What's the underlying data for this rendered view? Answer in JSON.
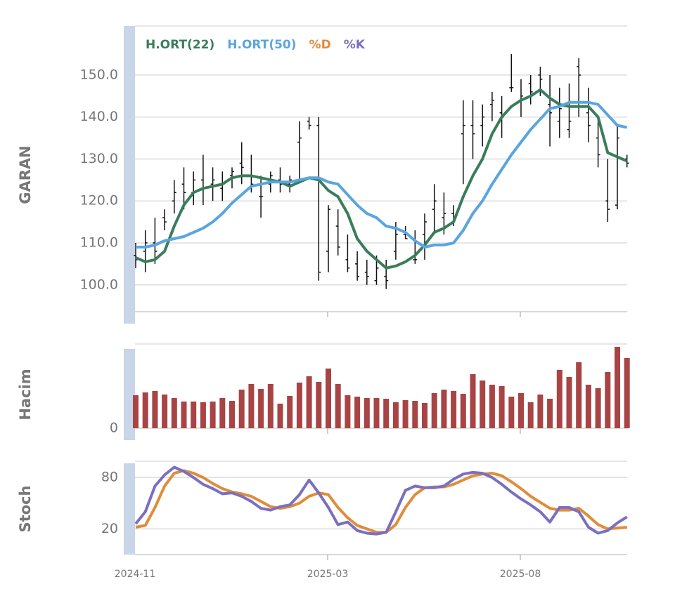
{
  "chart_data": [
    {
      "type": "ohlc",
      "ylabel": "GARAN",
      "color": "#111111",
      "open": [
        107,
        108,
        110,
        116,
        120,
        124,
        122,
        125,
        124,
        123,
        126,
        129,
        126,
        121,
        124,
        125,
        124,
        134,
        139,
        138,
        108,
        114,
        106,
        105,
        103,
        101,
        102,
        108,
        112,
        106,
        112,
        118,
        116,
        117,
        136,
        138,
        138,
        143,
        141,
        147,
        144,
        148,
        150,
        143,
        139,
        137,
        152,
        141,
        135,
        120,
        119,
        130
      ],
      "high": [
        110,
        113,
        116,
        118,
        125,
        128,
        127,
        131,
        128,
        127,
        128,
        134,
        131,
        126,
        127,
        128,
        126,
        139,
        140,
        140,
        119,
        118,
        112,
        108,
        106,
        107,
        106,
        115,
        114,
        113,
        117,
        124,
        122,
        119,
        144,
        144,
        143,
        146,
        145,
        155,
        149,
        150,
        152,
        150,
        147,
        148,
        154,
        147,
        140,
        130,
        138,
        131
      ],
      "low": [
        104,
        103,
        105,
        113,
        117,
        118,
        119,
        119,
        120,
        120,
        123,
        124,
        122,
        116,
        122,
        122,
        122,
        125,
        137,
        101,
        103,
        107,
        103,
        101,
        100,
        100,
        99,
        106,
        111,
        105,
        106,
        112,
        112,
        114,
        124,
        130,
        133,
        139,
        135,
        146,
        140,
        143,
        145,
        133,
        135,
        135,
        140,
        134,
        128,
        115,
        118,
        128
      ],
      "close": [
        106,
        110,
        108,
        115,
        122,
        122,
        125,
        123,
        125,
        124,
        127,
        128,
        124,
        121,
        126,
        124,
        125,
        135,
        138,
        103,
        118,
        109,
        104,
        102,
        102,
        104,
        101,
        112,
        111,
        106,
        115,
        120,
        117,
        116,
        138,
        136,
        140,
        144,
        140,
        147,
        145,
        146,
        149,
        141,
        142,
        139,
        150,
        138,
        131,
        118,
        135,
        129
      ],
      "series": [
        {
          "name": "H.ORT(22)",
          "color": "#3a7d5c",
          "values": [
            106.5,
            105.5,
            106,
            108,
            114,
            119,
            122,
            123,
            123.5,
            124,
            125.5,
            126,
            126,
            125.5,
            125,
            124.5,
            123.5,
            124.5,
            125.5,
            125,
            122.5,
            121,
            117,
            111,
            108,
            106,
            104,
            104.5,
            105.5,
            107,
            109.5,
            112.5,
            113.5,
            115,
            121,
            126,
            130,
            136,
            140,
            142.5,
            144,
            145,
            146.5,
            144.5,
            143,
            142.5,
            142.5,
            142.5,
            140,
            131.5,
            130.5,
            129.5
          ]
        },
        {
          "name": "H.ORT(50)",
          "color": "#5aa5e0",
          "values": [
            109,
            109,
            109.5,
            110.5,
            111,
            111.5,
            112.5,
            113.5,
            115,
            117,
            119.5,
            121.5,
            123.5,
            124,
            124.5,
            124.5,
            124.5,
            125,
            125.5,
            125.5,
            124.5,
            124,
            121.5,
            119,
            117,
            116,
            114,
            113.5,
            112.5,
            110.5,
            109,
            109.5,
            109.5,
            110,
            113,
            117,
            120,
            124,
            127.5,
            131,
            134,
            137,
            139.5,
            142,
            142.5,
            143.5,
            143.5,
            143.5,
            143,
            140.5,
            138,
            137.5
          ]
        }
      ],
      "ylim": [
        93.6,
        161.7
      ],
      "yticks": [
        {
          "value": 100,
          "label": "100.0"
        },
        {
          "value": 110,
          "label": "110.0"
        },
        {
          "value": 120,
          "label": "120.0"
        },
        {
          "value": 130,
          "label": "130.0"
        },
        {
          "value": 140,
          "label": "140.0"
        },
        {
          "value": 150,
          "label": "150.0"
        }
      ],
      "grid": true
    },
    {
      "type": "bar",
      "ylabel": "Hacim",
      "color": "#a84444",
      "values": [
        47,
        51,
        53,
        48,
        43,
        38,
        38,
        37,
        38,
        43,
        39,
        55,
        63,
        56,
        63,
        35,
        46,
        65,
        74,
        66,
        85,
        63,
        47,
        45,
        43,
        43,
        42,
        37,
        40,
        39,
        36,
        50,
        55,
        53,
        49,
        77,
        68,
        62,
        60,
        45,
        50,
        37,
        48,
        42,
        83,
        73,
        94,
        62,
        57,
        80,
        116,
        100
      ],
      "ylim": [
        0,
        120
      ],
      "yticks": [
        0
      ],
      "grid": true
    },
    {
      "type": "line",
      "ylabel": "Stoch",
      "categories": [
        "2024-11",
        null,
        null,
        null,
        null,
        null,
        null,
        null,
        null,
        null,
        null,
        null,
        null,
        null,
        null,
        null,
        null,
        null,
        null,
        null,
        "2025-03",
        null,
        null,
        null,
        null,
        null,
        null,
        null,
        null,
        null,
        null,
        null,
        null,
        null,
        null,
        null,
        null,
        null,
        null,
        null,
        "2025-08",
        null,
        null,
        null,
        null,
        null,
        null,
        null,
        null,
        null,
        null,
        null
      ],
      "series": [
        {
          "name": "%D",
          "color": "#e08c3a",
          "values": [
            22,
            24,
            45,
            70,
            85,
            88,
            85,
            80,
            73,
            67,
            63,
            61,
            58,
            52,
            46,
            44,
            46,
            50,
            58,
            62,
            60,
            45,
            33,
            24,
            20,
            16,
            16,
            25,
            45,
            60,
            68,
            69,
            69,
            72,
            77,
            82,
            84,
            85,
            82,
            75,
            67,
            58,
            51,
            44,
            42,
            42,
            44,
            35,
            25,
            20,
            21,
            22
          ]
        },
        {
          "name": "%K",
          "color": "#7b6fc0",
          "values": [
            26,
            40,
            70,
            83,
            92,
            87,
            80,
            72,
            67,
            61,
            62,
            58,
            52,
            44,
            42,
            46,
            48,
            60,
            77,
            62,
            45,
            25,
            28,
            18,
            15,
            14,
            16,
            40,
            65,
            70,
            68,
            68,
            70,
            78,
            84,
            86,
            85,
            80,
            72,
            63,
            55,
            48,
            40,
            28,
            45,
            45,
            40,
            22,
            15,
            18,
            27,
            34
          ]
        }
      ],
      "ylim": [
        -10,
        99
      ],
      "yticks": [
        20,
        80
      ],
      "grid": true
    }
  ]
}
